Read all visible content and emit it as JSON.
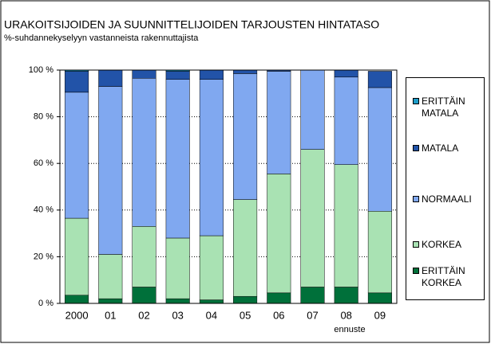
{
  "chart_data": {
    "type": "stacked_bar",
    "title": "URAKOITSIJOIDEN JA SUUNNITTELIJOIDEN TARJOUSTEN HINTATASO",
    "subtitle": "%-suhdannekyselyyn vastanneista rakennuttajista",
    "annotation": "ennuste",
    "categories": [
      "2000",
      "01",
      "02",
      "03",
      "04",
      "05",
      "06",
      "07",
      "08",
      "09"
    ],
    "series": [
      {
        "name": "ERITTÄIN KORKEA",
        "color": "#00703a",
        "values": [
          3.5,
          2,
          7,
          2,
          1.5,
          3,
          4.5,
          7,
          7,
          4.5
        ]
      },
      {
        "name": "KORKEA",
        "color": "#a9e2b3",
        "values": [
          33,
          19,
          26,
          26,
          27.5,
          41.5,
          51,
          59,
          52.5,
          35
        ]
      },
      {
        "name": "NORMAALI",
        "color": "#80a8f0",
        "values": [
          54,
          72,
          63.5,
          68,
          67,
          54,
          44,
          34,
          37.5,
          53
        ]
      },
      {
        "name": "MATALA",
        "color": "#2253a8",
        "values": [
          9,
          7,
          3.5,
          3.5,
          4,
          1.5,
          0.5,
          0,
          3,
          7
        ]
      },
      {
        "name": "ERITTÄIN MATALA",
        "color": "#1c9cc8",
        "values": [
          0.5,
          0,
          0,
          0.5,
          0,
          0,
          0,
          0,
          0,
          0
        ]
      }
    ],
    "ylim": [
      0,
      100
    ],
    "yticks": [
      {
        "value": 0,
        "label": "0 %"
      },
      {
        "value": 20,
        "label": "20 %"
      },
      {
        "value": 40,
        "label": "40 %"
      },
      {
        "value": 60,
        "label": "60 %"
      },
      {
        "value": 80,
        "label": "80 %"
      },
      {
        "value": 100,
        "label": "100 %"
      }
    ],
    "grid": true
  }
}
